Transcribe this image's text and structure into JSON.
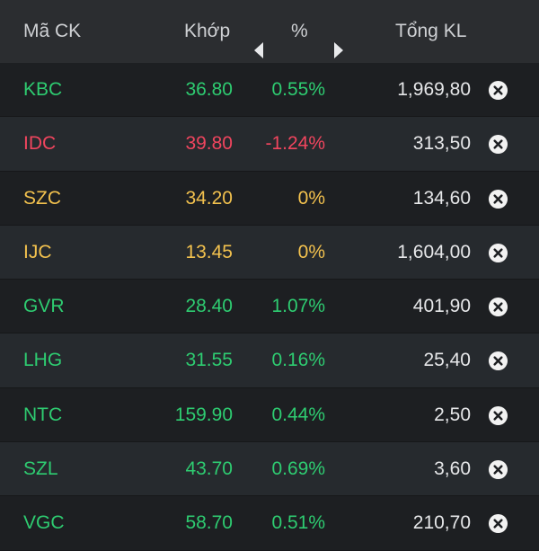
{
  "header": {
    "symbol_label": "Mã CK",
    "price_label": "Khớp",
    "pct_label": "%",
    "volume_label": "Tổng KL",
    "left_arrow_icon": "caret-left-icon",
    "right_arrow_icon": "caret-right-icon"
  },
  "colors": {
    "up": "#2ecc71",
    "down": "#f0455e",
    "reference": "#f2c14e"
  },
  "rows": [
    {
      "symbol": "KBC",
      "price": "36.80",
      "pct": "0.55%",
      "volume": "1,969,80",
      "status": "up"
    },
    {
      "symbol": "IDC",
      "price": "39.80",
      "pct": "-1.24%",
      "volume": "313,50",
      "status": "down"
    },
    {
      "symbol": "SZC",
      "price": "34.20",
      "pct": "0%",
      "volume": "134,60",
      "status": "ref"
    },
    {
      "symbol": "IJC",
      "price": "13.45",
      "pct": "0%",
      "volume": "1,604,00",
      "status": "ref"
    },
    {
      "symbol": "GVR",
      "price": "28.40",
      "pct": "1.07%",
      "volume": "401,90",
      "status": "up"
    },
    {
      "symbol": "LHG",
      "price": "31.55",
      "pct": "0.16%",
      "volume": "25,40",
      "status": "up"
    },
    {
      "symbol": "NTC",
      "price": "159.90",
      "pct": "0.44%",
      "volume": "2,50",
      "status": "up"
    },
    {
      "symbol": "SZL",
      "price": "43.70",
      "pct": "0.69%",
      "volume": "3,60",
      "status": "up"
    },
    {
      "symbol": "VGC",
      "price": "58.70",
      "pct": "0.51%",
      "volume": "210,70",
      "status": "up"
    }
  ],
  "row_remove_icon": "close-circle-icon"
}
